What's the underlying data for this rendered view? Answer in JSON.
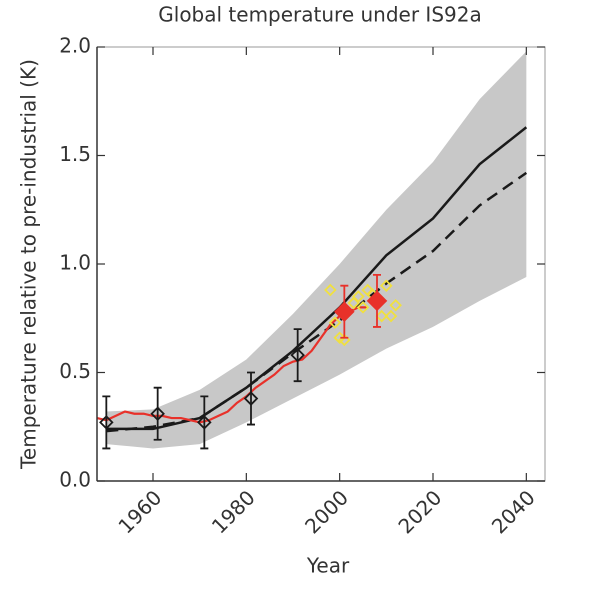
{
  "chart_data": {
    "type": "line",
    "title": "Global temperature under IS92a",
    "xlabel": "Year",
    "ylabel": "Temperature relative to pre-industrial (K)",
    "xlim": [
      1948,
      2044
    ],
    "ylim": [
      0,
      2
    ],
    "xticks": [
      1960,
      1980,
      2000,
      2020,
      2040
    ],
    "yticks": [
      {
        "value": 0,
        "label": "0.0"
      },
      0.5,
      {
        "value": 1,
        "label": "1.0"
      },
      1.5,
      {
        "value": 2,
        "label": "2.0"
      }
    ],
    "x": [
      1950,
      1960,
      1970,
      1980,
      1990,
      2000,
      2010,
      2020,
      2030,
      2040
    ],
    "band": {
      "color": "#c8c8c8",
      "upper": [
        0.32,
        0.33,
        0.42,
        0.56,
        0.77,
        1.0,
        1.25,
        1.47,
        1.76,
        1.98
      ],
      "lower": [
        0.17,
        0.15,
        0.17,
        0.27,
        0.38,
        0.49,
        0.61,
        0.71,
        0.83,
        0.94
      ]
    },
    "series": [
      {
        "color": "#1a1a1a",
        "dash": false,
        "values": [
          0.24,
          0.24,
          0.29,
          0.43,
          0.6,
          0.8,
          1.04,
          1.21,
          1.46,
          1.63
        ]
      },
      {
        "color": "#1a1a1a",
        "dash": true,
        "values": [
          0.23,
          0.25,
          0.29,
          0.43,
          0.59,
          0.74,
          0.91,
          1.06,
          1.27,
          1.42
        ]
      }
    ],
    "observed": {
      "color": "#e8312a",
      "x": [
        1948,
        1950,
        1952,
        1954,
        1956,
        1958,
        1960,
        1962,
        1964,
        1966,
        1968,
        1970,
        1972,
        1974,
        1976,
        1978,
        1980,
        1982,
        1984,
        1986,
        1988,
        1990,
        1992,
        1994,
        1996,
        1998,
        2000,
        2002,
        2004,
        2006
      ],
      "values": [
        0.29,
        0.28,
        0.3,
        0.32,
        0.31,
        0.31,
        0.3,
        0.3,
        0.29,
        0.29,
        0.28,
        0.27,
        0.28,
        0.3,
        0.32,
        0.36,
        0.39,
        0.43,
        0.46,
        0.49,
        0.53,
        0.55,
        0.56,
        0.6,
        0.66,
        0.72,
        0.76,
        0.78,
        0.8,
        0.8
      ]
    },
    "markers": [
      {
        "color": "#1a1a1a",
        "filled": false,
        "size": 6,
        "x": [
          1950,
          1961,
          1971,
          1981,
          1991
        ],
        "values": [
          0.27,
          0.31,
          0.27,
          0.38,
          0.58
        ],
        "errors": [
          0.12,
          0.12,
          0.12,
          0.12,
          0.12
        ]
      },
      {
        "color": "#f0e040",
        "filled": false,
        "size": 5,
        "x": [
          1998,
          1999,
          2000,
          2001,
          2003,
          2004,
          2005,
          2006,
          2007,
          2009,
          2010,
          2011,
          2012
        ],
        "values": [
          0.88,
          0.73,
          0.66,
          0.65,
          0.82,
          0.85,
          0.8,
          0.88,
          0.86,
          0.76,
          0.9,
          0.76,
          0.81
        ]
      },
      {
        "color": "#e8312a",
        "filled": true,
        "size": 9,
        "x": [
          2001,
          2008
        ],
        "values": [
          0.78,
          0.83
        ],
        "errors": [
          0.12,
          0.12
        ]
      }
    ]
  }
}
